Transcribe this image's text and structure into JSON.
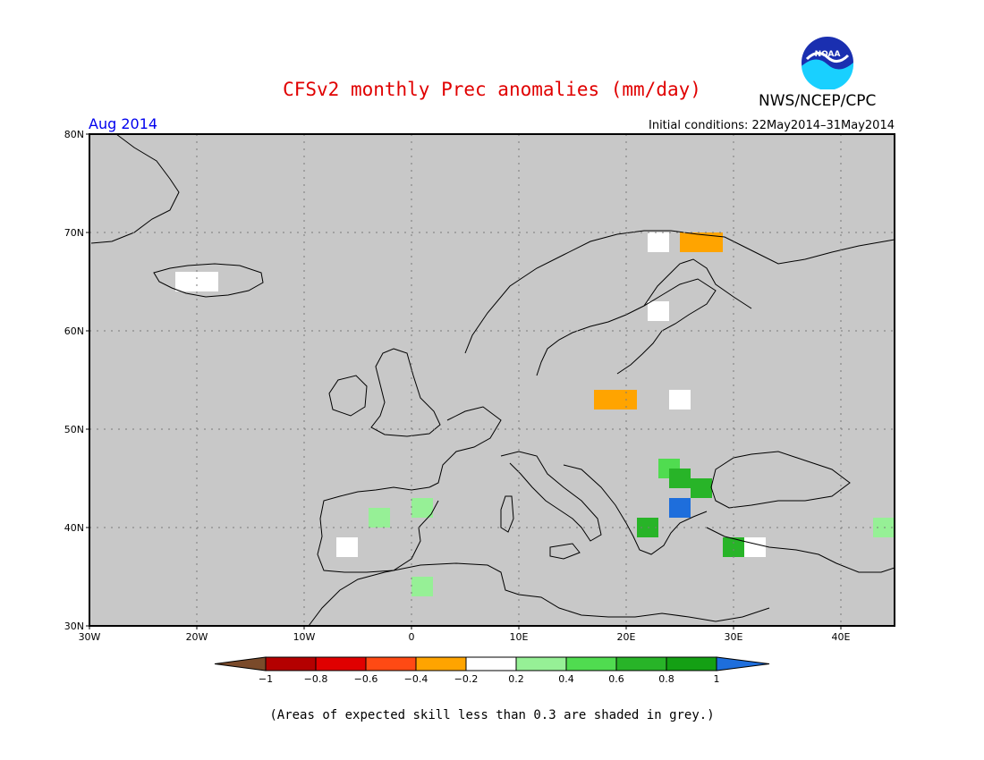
{
  "header": {
    "title": "CFSv2 monthly Prec anomalies (mm/day)",
    "agency": "NWS/NCEP/CPC",
    "period": "Aug 2014",
    "initial_conditions": "Initial conditions: 22May2014–31May2014",
    "logo_text": "NOAA"
  },
  "map": {
    "region": "Europe",
    "lon_range": [
      -30,
      45
    ],
    "lat_range": [
      30,
      80
    ],
    "lat_labels": [
      "80N",
      "70N",
      "60N",
      "50N",
      "40N",
      "30N"
    ],
    "lon_labels": [
      "30W",
      "20W",
      "10W",
      "0",
      "10E",
      "20E",
      "30E",
      "40E"
    ],
    "background_color": "#c8c8c8",
    "grid": "dotted"
  },
  "legend": {
    "ticks": [
      "−1",
      "−0.8",
      "−0.6",
      "−0.4",
      "−0.2",
      "0.2",
      "0.4",
      "0.6",
      "0.8",
      "1"
    ],
    "colors": [
      "#7a4a2a",
      "#b40000",
      "#e00000",
      "#ff4a14",
      "#ffa400",
      "#ffffff",
      "#96f096",
      "#50dc50",
      "#28b428",
      "#14a014",
      "#1e6edc"
    ]
  },
  "anomaly_cells": [
    {
      "lon": -21,
      "lat": 65,
      "color": "#ffffff",
      "label": "Iceland 0.0"
    },
    {
      "lon": -19,
      "lat": 65,
      "color": "#ffffff",
      "label": "Iceland 0.0"
    },
    {
      "lon": 23,
      "lat": 69,
      "color": "#ffffff",
      "label": "Lapland 0.0"
    },
    {
      "lon": 26,
      "lat": 69,
      "color": "#ffa400",
      "label": "Lapland -0.3"
    },
    {
      "lon": 28,
      "lat": 69,
      "color": "#ffa400",
      "label": "Lapland -0.3"
    },
    {
      "lon": 23,
      "lat": 62,
      "color": "#ffffff",
      "label": "Finland 0.0"
    },
    {
      "lon": 18,
      "lat": 53,
      "color": "#ffa400",
      "label": "Poland -0.3"
    },
    {
      "lon": 20,
      "lat": 53,
      "color": "#ffa400",
      "label": "Poland -0.3"
    },
    {
      "lon": 25,
      "lat": 53,
      "color": "#ffffff",
      "label": "Belarus 0.0"
    },
    {
      "lon": 24,
      "lat": 46,
      "color": "#50dc50",
      "label": "Romania 0.5"
    },
    {
      "lon": 25,
      "lat": 45,
      "color": "#28b428",
      "label": "Romania 0.7"
    },
    {
      "lon": 27,
      "lat": 44,
      "color": "#28b428",
      "label": "Bulgaria 0.7"
    },
    {
      "lon": 25,
      "lat": 42,
      "color": "#1e6edc",
      "label": "Bulgaria 1.0"
    },
    {
      "lon": 22,
      "lat": 40,
      "color": "#28b428",
      "label": "Greece 0.7"
    },
    {
      "lon": 30,
      "lat": 38,
      "color": "#28b428",
      "label": "Turkey 0.7"
    },
    {
      "lon": 32,
      "lat": 38,
      "color": "#ffffff",
      "label": "Turkey 0.0"
    },
    {
      "lon": -6,
      "lat": 38,
      "color": "#ffffff",
      "label": "Iberia 0.0"
    },
    {
      "lon": -3,
      "lat": 41,
      "color": "#96f096",
      "label": "Iberia 0.3"
    },
    {
      "lon": 1,
      "lat": 42,
      "color": "#96f096",
      "label": "Iberia 0.3"
    },
    {
      "lon": 1,
      "lat": 34,
      "color": "#96f096",
      "label": "Algeria 0.3"
    },
    {
      "lon": 44,
      "lat": 40,
      "color": "#96f096",
      "label": "Caucasus 0.3"
    }
  ],
  "footnote": "(Areas of expected skill less than 0.3 are shaded in grey.)"
}
